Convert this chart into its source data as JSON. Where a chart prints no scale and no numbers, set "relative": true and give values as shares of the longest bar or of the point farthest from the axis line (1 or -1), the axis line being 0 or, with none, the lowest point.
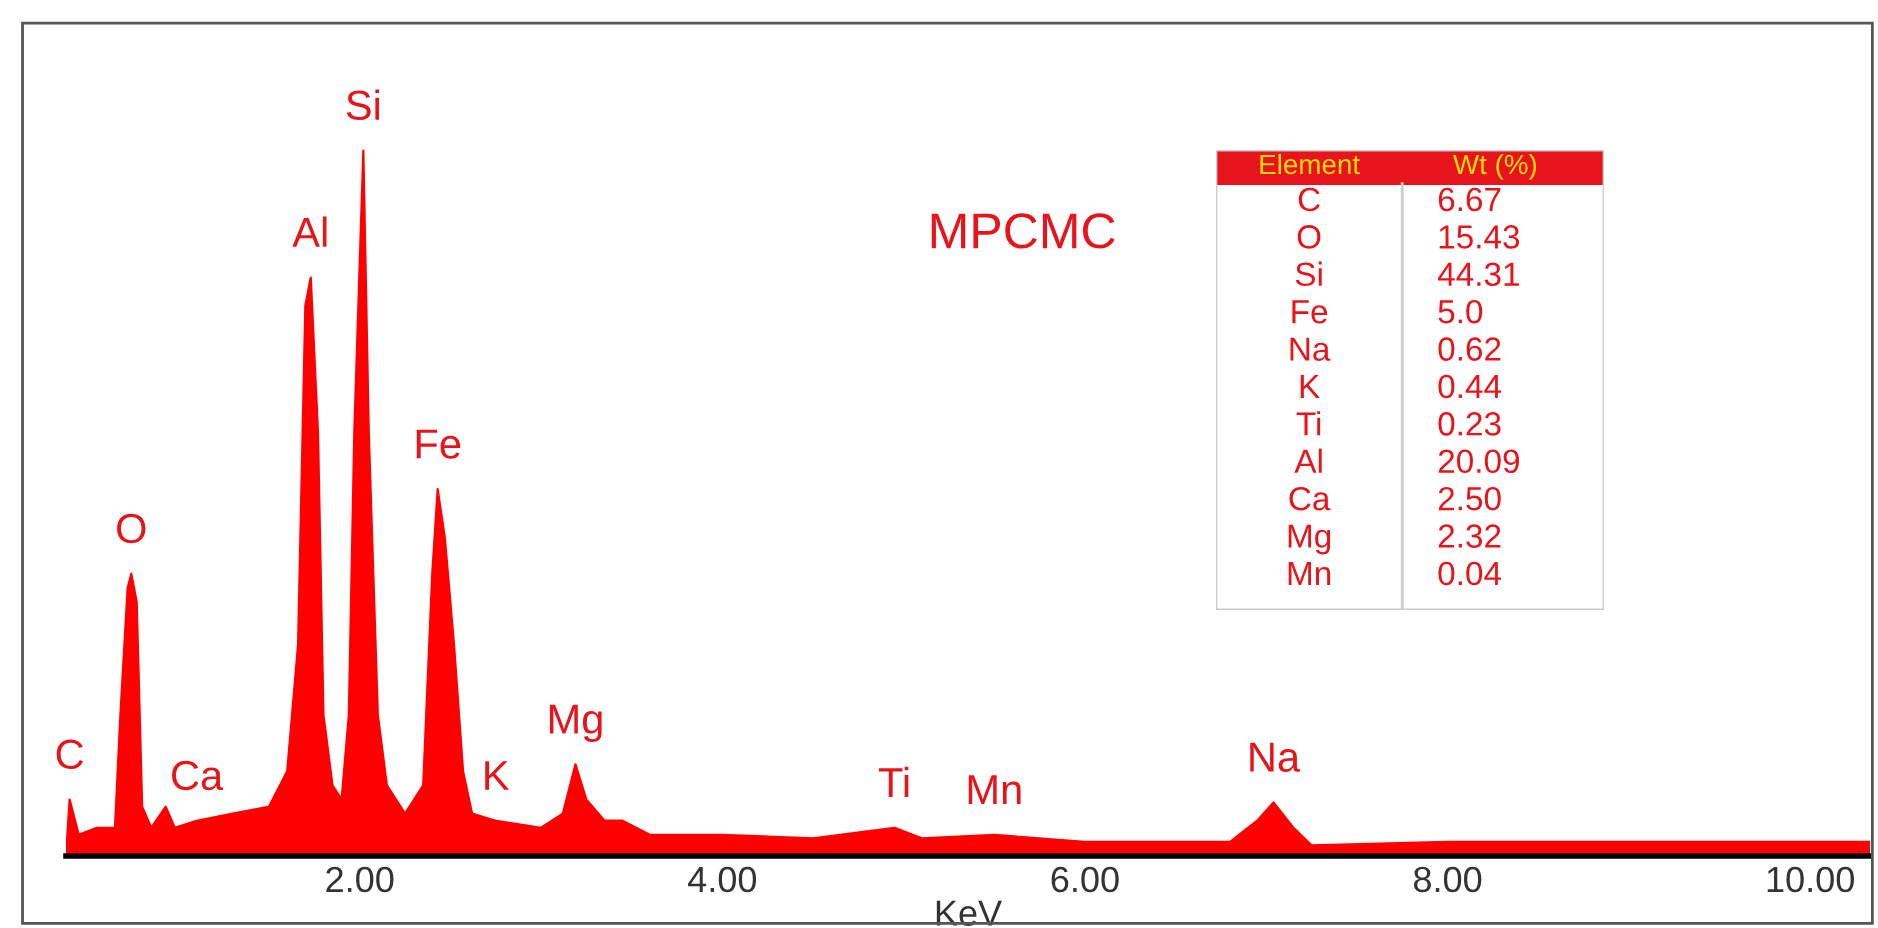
{
  "chart_data": [
    {
      "type": "area",
      "relative": true,
      "xlabel": "KeV",
      "xlim": [
        0.38,
        10.33
      ],
      "xticks": [
        {
          "value": 2,
          "label": "2.00"
        },
        {
          "value": 4,
          "label": "4.00"
        },
        {
          "value": 6,
          "label": "6.00"
        },
        {
          "value": 8,
          "label": "8.00"
        },
        {
          "value": 10,
          "label": "10.00"
        }
      ],
      "tick_labels": "x",
      "grid": false,
      "legend": false,
      "series": [
        {
          "color": "#ff0000",
          "x": [
            0.38,
            0.4,
            0.45,
            0.55,
            0.65,
            0.68,
            0.72,
            0.74,
            0.77,
            0.8,
            0.85,
            0.93,
            0.98,
            1.1,
            1.3,
            1.5,
            1.6,
            1.66,
            1.7,
            1.73,
            1.77,
            1.8,
            1.85,
            1.9,
            1.94,
            1.97,
            2.0,
            2.02,
            2.05,
            2.1,
            2.15,
            2.25,
            2.35,
            2.4,
            2.43,
            2.47,
            2.52,
            2.57,
            2.62,
            2.75,
            3.0,
            3.12,
            3.19,
            3.25,
            3.35,
            3.45,
            3.6,
            4.0,
            4.5,
            4.95,
            5.1,
            5.5,
            6.0,
            6.8,
            6.95,
            7.04,
            7.15,
            7.25,
            8.0,
            9.0,
            10.0,
            10.33
          ],
          "values": [
            0.0,
            0.08,
            0.03,
            0.04,
            0.04,
            0.2,
            0.38,
            0.4,
            0.36,
            0.07,
            0.04,
            0.07,
            0.04,
            0.05,
            0.06,
            0.07,
            0.12,
            0.3,
            0.78,
            0.82,
            0.6,
            0.2,
            0.1,
            0.08,
            0.2,
            0.6,
            0.84,
            1.0,
            0.6,
            0.2,
            0.1,
            0.06,
            0.1,
            0.4,
            0.52,
            0.45,
            0.3,
            0.12,
            0.06,
            0.05,
            0.04,
            0.06,
            0.13,
            0.08,
            0.05,
            0.05,
            0.03,
            0.03,
            0.025,
            0.04,
            0.025,
            0.03,
            0.02,
            0.02,
            0.05,
            0.076,
            0.04,
            0.015,
            0.02,
            0.02,
            0.02,
            0.02
          ]
        }
      ],
      "annotations": [
        {
          "text": "C",
          "x": 0.4,
          "y": 0.08
        },
        {
          "text": "O",
          "x": 0.74,
          "y": 0.4
        },
        {
          "text": "Ca",
          "x": 1.1,
          "y": 0.05
        },
        {
          "text": "Al",
          "x": 1.73,
          "y": 0.82
        },
        {
          "text": "Si",
          "x": 2.02,
          "y": 1.0
        },
        {
          "text": "Fe",
          "x": 2.43,
          "y": 0.52
        },
        {
          "text": "K",
          "x": 2.75,
          "y": 0.05
        },
        {
          "text": "Mg",
          "x": 3.19,
          "y": 0.13
        },
        {
          "text": "Ti",
          "x": 4.95,
          "y": 0.04
        },
        {
          "text": "Mn",
          "x": 5.5,
          "y": 0.03
        },
        {
          "text": "Na",
          "x": 7.04,
          "y": 0.076
        },
        "MPCMC"
      ]
    },
    {
      "type": "other",
      "categories": [
        "C",
        "O",
        "Si",
        "Fe",
        "Na",
        "K",
        "Ti",
        "Al",
        "Ca",
        "Mg",
        "Mn"
      ],
      "values": [
        6.67,
        15.43,
        44.31,
        5.0,
        0.62,
        0.44,
        0.23,
        20.09,
        2.5,
        2.32,
        0.04
      ],
      "value_labels": [
        "6.67",
        "15.43",
        "44.31",
        "5.0",
        "0.62",
        "0.44",
        "0.23",
        "20.09",
        "2.50",
        "2.32",
        "0.04"
      ],
      "annotations": [
        "Element",
        "Wt (%)"
      ]
    }
  ]
}
